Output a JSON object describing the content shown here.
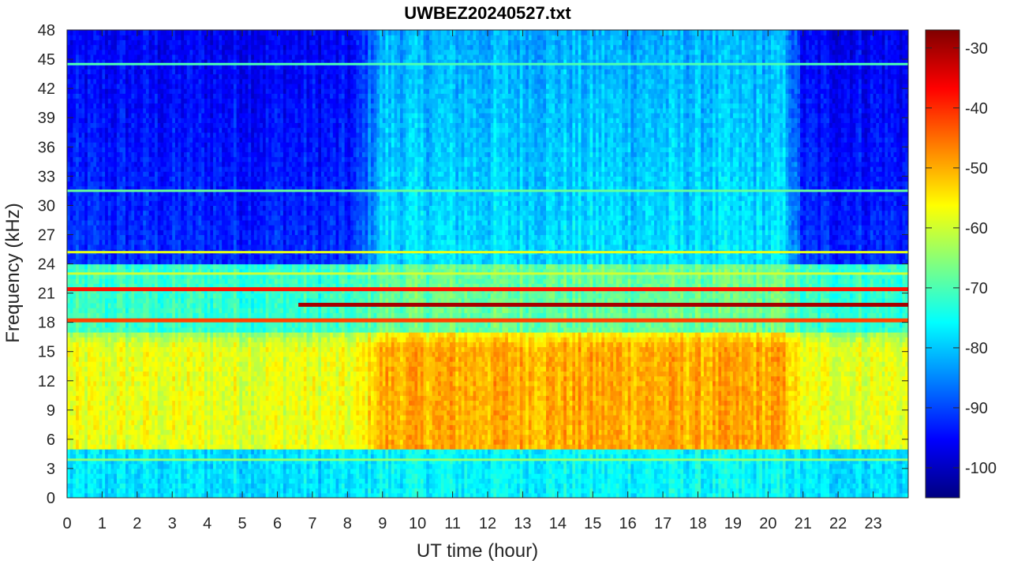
{
  "chart_data": {
    "type": "heatmap",
    "title": "UWBEZ20240527.txt",
    "xlabel": "UT time (hour)",
    "ylabel": "Frequency (kHz)",
    "xlim": [
      0,
      24
    ],
    "ylim": [
      0,
      48
    ],
    "x_ticks": [
      "0",
      "1",
      "2",
      "3",
      "4",
      "5",
      "6",
      "7",
      "8",
      "9",
      "10",
      "11",
      "12",
      "13",
      "14",
      "15",
      "16",
      "17",
      "18",
      "19",
      "20",
      "21",
      "22",
      "23"
    ],
    "y_ticks": [
      "0",
      "3",
      "6",
      "9",
      "12",
      "15",
      "18",
      "21",
      "24",
      "27",
      "30",
      "33",
      "36",
      "39",
      "42",
      "45",
      "48"
    ],
    "colorbar": {
      "colormap": "jet",
      "range": [
        -105,
        -27
      ],
      "ticks": [
        "-100",
        "-90",
        "-80",
        "-70",
        "-60",
        "-50",
        "-40",
        "-30"
      ]
    },
    "features": {
      "strong_lines_khz": [
        {
          "freq": 19.8,
          "level": -30,
          "from_hour": 6.6,
          "to_hour": 24
        },
        {
          "freq": 21.4,
          "level": -38,
          "from_hour": 0,
          "to_hour": 24
        },
        {
          "freq": 18.2,
          "level": -42,
          "from_hour": 0,
          "to_hour": 24
        }
      ],
      "moderate_lines_khz": [
        {
          "freq": 44.5,
          "level": -70
        },
        {
          "freq": 31.5,
          "level": -68
        },
        {
          "freq": 25.2,
          "level": -58
        },
        {
          "freq": 23.0,
          "level": -60
        },
        {
          "freq": 3.9,
          "level": -65
        }
      ],
      "broadband_region": {
        "freq_range_khz": [
          5,
          17
        ],
        "level_night": -58,
        "level_day": -50,
        "day_hours": [
          9,
          20.5
        ]
      },
      "upper_band_level": {
        "night": -92,
        "day": -78
      }
    }
  }
}
